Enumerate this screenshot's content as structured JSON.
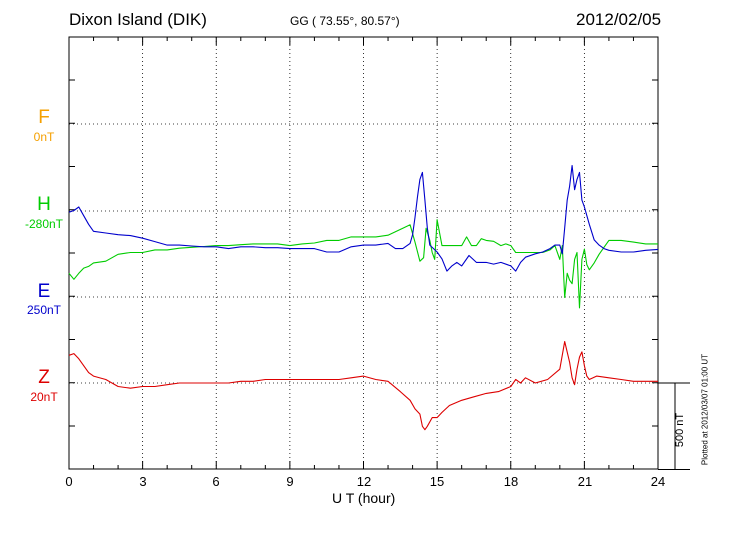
{
  "header": {
    "station": "Dixon Island (DIK)",
    "coords": "GG ( 73.55°,  80.57°)",
    "date": "2012/02/05"
  },
  "components": [
    {
      "letter": "F",
      "baseline": "0nT",
      "color": "#f5a000"
    },
    {
      "letter": "H",
      "baseline": "-280nT",
      "color": "#00cc00"
    },
    {
      "letter": "E",
      "baseline": "250nT",
      "color": "#0000cc"
    },
    {
      "letter": "Z",
      "baseline": "20nT",
      "color": "#dd0000"
    }
  ],
  "scale_label": "500 nT",
  "plotted_note": "Plotted at 2012/03/07 01:00 UT",
  "chart_data": {
    "type": "line",
    "title": "Dixon Island (DIK)",
    "xlabel": "U T (hour)",
    "ylabel": "",
    "xlim": [
      0,
      24
    ],
    "xticks": [
      "0",
      "3",
      "6",
      "9",
      "12",
      "15",
      "18",
      "21",
      "24"
    ],
    "grid": true,
    "scale_bar_nT": 500,
    "series": [
      {
        "name": "H",
        "baseline_nT": -280,
        "color": "#00cc00",
        "x": [
          0,
          0.2,
          0.4,
          0.6,
          0.8,
          1,
          1.5,
          2,
          2.5,
          3,
          3.5,
          4,
          4.5,
          5,
          5.5,
          6,
          6.5,
          7,
          7.5,
          8,
          8.5,
          9,
          9.5,
          10,
          10.5,
          11,
          11.5,
          12,
          12.5,
          13,
          13.3,
          13.6,
          13.9,
          14.1,
          14.3,
          14.45,
          14.55,
          14.7,
          14.8,
          14.9,
          15,
          15.2,
          15.4,
          15.6,
          15.8,
          16,
          16.2,
          16.4,
          16.6,
          16.8,
          17,
          17.3,
          17.6,
          17.8,
          18,
          18.2,
          18.4,
          18.7,
          19,
          19.3,
          19.6,
          19.8,
          20,
          20.1,
          20.2,
          20.3,
          20.4,
          20.5,
          20.6,
          20.7,
          20.8,
          20.9,
          21,
          21.1,
          21.2,
          21.4,
          21.6,
          21.8,
          22,
          22.5,
          23,
          23.5,
          24
        ],
        "y": [
          -360,
          -395,
          -360,
          -330,
          -320,
          -300,
          -290,
          -250,
          -240,
          -240,
          -225,
          -225,
          -215,
          -210,
          -205,
          -200,
          -200,
          -195,
          -190,
          -190,
          -190,
          -200,
          -190,
          -185,
          -170,
          -170,
          -150,
          -150,
          -150,
          -140,
          -120,
          -100,
          -80,
          -180,
          -290,
          -270,
          -100,
          -170,
          -240,
          -280,
          -50,
          -200,
          -200,
          -200,
          -200,
          -200,
          -150,
          -200,
          -200,
          -160,
          -170,
          -175,
          -200,
          -190,
          -200,
          -240,
          -240,
          -240,
          -240,
          -240,
          -225,
          -200,
          -280,
          -200,
          -500,
          -360,
          -400,
          -420,
          -280,
          -240,
          -560,
          -280,
          -220,
          -310,
          -340,
          -300,
          -250,
          -210,
          -170,
          -170,
          -180,
          -190,
          -190
        ]
      },
      {
        "name": "E",
        "baseline_nT": 250,
        "color": "#0000cc",
        "x": [
          0,
          0.2,
          0.4,
          0.6,
          0.8,
          1,
          1.5,
          2,
          2.5,
          3,
          3.5,
          4,
          4.5,
          5,
          5.5,
          6,
          6.5,
          7,
          7.5,
          8,
          8.5,
          9,
          9.5,
          10,
          10.5,
          11,
          11.5,
          12,
          12.5,
          13,
          13.3,
          13.6,
          13.9,
          14,
          14.1,
          14.2,
          14.3,
          14.4,
          14.5,
          14.6,
          14.7,
          15,
          15.2,
          15.4,
          15.6,
          15.8,
          16,
          16.3,
          16.6,
          17,
          17.3,
          17.6,
          18,
          18.2,
          18.4,
          18.6,
          19,
          19.3,
          19.6,
          19.8,
          20,
          20.1,
          20.2,
          20.3,
          20.4,
          20.5,
          20.6,
          20.7,
          20.8,
          20.9,
          21,
          21.2,
          21.4,
          21.6,
          21.8,
          22,
          22.5,
          23,
          23.5,
          24
        ],
        "y": [
          490,
          500,
          520,
          470,
          420,
          380,
          370,
          360,
          355,
          340,
          320,
          300,
          300,
          295,
          290,
          290,
          280,
          290,
          290,
          285,
          285,
          280,
          280,
          280,
          260,
          260,
          290,
          300,
          300,
          310,
          280,
          280,
          310,
          360,
          460,
          580,
          680,
          720,
          560,
          400,
          300,
          260,
          220,
          150,
          180,
          200,
          180,
          240,
          200,
          200,
          190,
          200,
          180,
          150,
          200,
          230,
          250,
          260,
          280,
          300,
          300,
          250,
          400,
          560,
          640,
          760,
          620,
          680,
          720,
          560,
          520,
          420,
          330,
          300,
          280,
          270,
          260,
          260,
          270,
          275
        ]
      },
      {
        "name": "Z",
        "baseline_nT": 20,
        "color": "#dd0000",
        "x": [
          0,
          0.2,
          0.4,
          0.6,
          0.8,
          1,
          1.5,
          2,
          2.5,
          3,
          3.5,
          4,
          4.5,
          5,
          5.5,
          6,
          6.5,
          7,
          7.5,
          8,
          8.5,
          9,
          9.5,
          10,
          10.5,
          11,
          11.5,
          12,
          12.5,
          13,
          13.5,
          13.9,
          14.1,
          14.3,
          14.4,
          14.5,
          14.6,
          14.8,
          15,
          15.2,
          15.5,
          16,
          16.5,
          17,
          17.5,
          18,
          18.2,
          18.4,
          18.6,
          19,
          19.5,
          20,
          20.2,
          20.4,
          20.5,
          20.6,
          20.7,
          20.8,
          20.9,
          21,
          21.1,
          21.2,
          21.5,
          22,
          22.5,
          23,
          23.5,
          24
        ],
        "y": [
          160,
          170,
          140,
          100,
          60,
          40,
          20,
          -20,
          -30,
          -20,
          -20,
          -10,
          0,
          0,
          0,
          0,
          0,
          10,
          10,
          20,
          20,
          20,
          20,
          20,
          20,
          20,
          30,
          40,
          20,
          10,
          -50,
          -100,
          -150,
          -180,
          -250,
          -270,
          -250,
          -200,
          -200,
          -170,
          -130,
          -100,
          -80,
          -60,
          -50,
          -20,
          20,
          0,
          30,
          0,
          20,
          80,
          240,
          120,
          30,
          -10,
          80,
          150,
          180,
          100,
          40,
          20,
          40,
          30,
          20,
          10,
          10,
          10
        ]
      }
    ]
  }
}
